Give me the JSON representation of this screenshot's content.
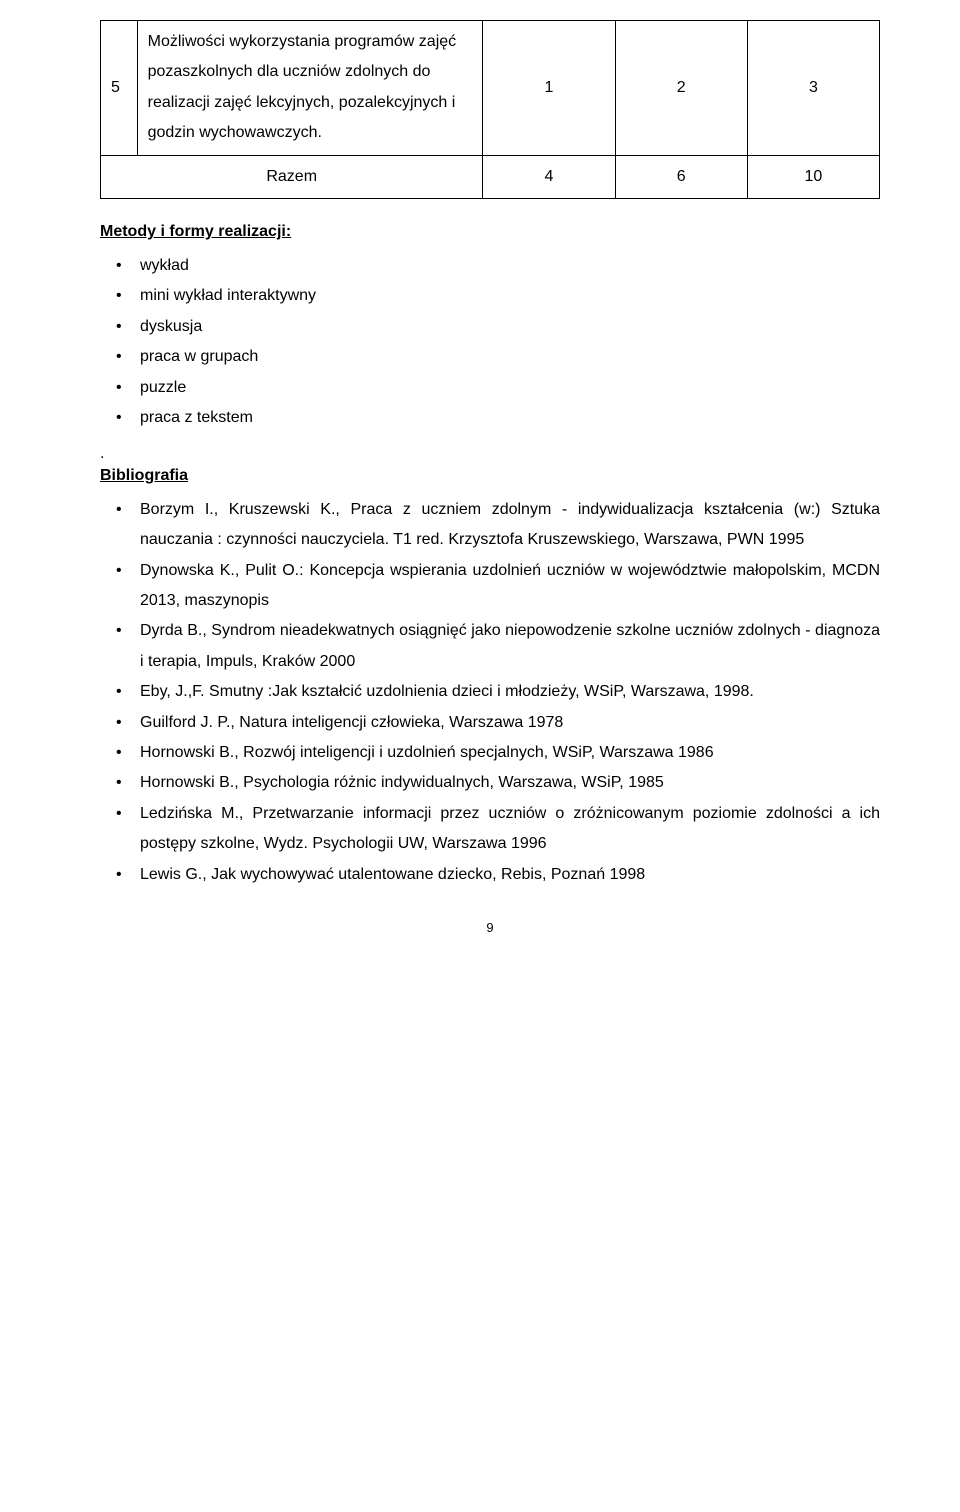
{
  "table": {
    "rows": [
      {
        "num": "5",
        "desc": "Możliwości wykorzystania programów zajęć pozaszkolnych dla uczniów zdolnych do realizacji zajęć lekcyjnych, pozalekcyjnych i godzin wychowawczych.",
        "v1": "1",
        "v2": "2",
        "v3": "3"
      }
    ],
    "sum": {
      "label": "Razem",
      "v1": "4",
      "v2": "6",
      "v3": "10"
    }
  },
  "sections": {
    "methods_heading": "Metody i formy realizacji:",
    "methods_items": [
      "wykład",
      "mini wykład interaktywny",
      "dyskusja",
      "praca w grupach",
      "puzzle",
      "praca z tekstem"
    ],
    "dot": ".",
    "biblio_heading": "Bibliografia",
    "biblio_items": [
      "Borzym I., Kruszewski K., Praca z uczniem zdolnym - indywidualizacja kształcenia (w:)   Sztuka nauczania : czynności nauczyciela. T1 red. Krzysztofa Kruszewskiego, Warszawa, PWN 1995",
      "Dynowska K., Pulit O.: Koncepcja wspierania uzdolnień uczniów w województwie małopolskim, MCDN 2013, maszynopis",
      "Dyrda B., Syndrom nieadekwatnych osiągnięć jako niepowodzenie szkolne uczniów zdolnych - diagnoza i terapia, Impuls, Kraków 2000",
      "Eby, J.,F. Smutny :Jak kształcić uzdolnienia dzieci i młodzieży, WSiP, Warszawa, 1998.",
      "Guilford J. P., Natura inteligencji człowieka, Warszawa 1978",
      "Hornowski B., Rozwój inteligencji i uzdolnień specjalnych, WSiP, Warszawa 1986",
      "Hornowski B., Psychologia różnic indywidualnych, Warszawa, WSiP, 1985",
      "Ledzińska M., Przetwarzanie informacji przez uczniów o zróżnicowanym poziomie zdolności a ich postępy szkolne, Wydz. Psychologii UW, Warszawa 1996",
      "Lewis G., Jak wychowywać utalentowane dziecko, Rebis, Poznań  1998"
    ]
  },
  "page_number": "9"
}
